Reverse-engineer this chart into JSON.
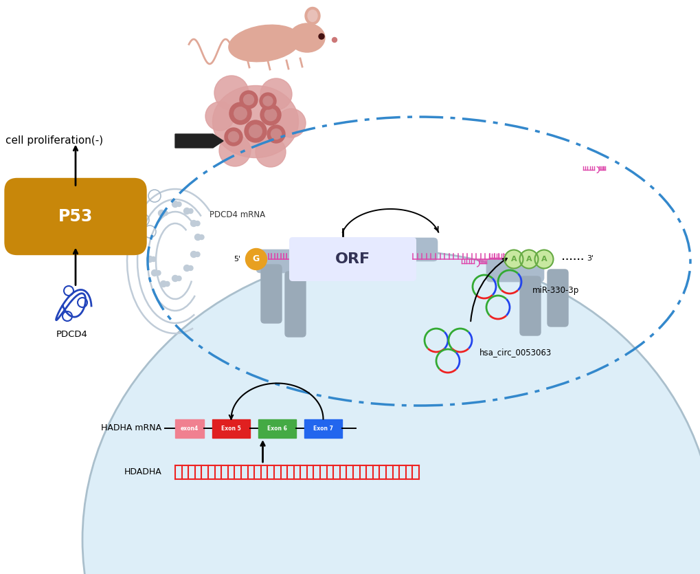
{
  "bg_color": "#ffffff",
  "cell_bg_color": "#ddeef8",
  "nucleus_border_color": "#aabfcc",
  "p53_color": "#c8870a",
  "p53_text": "P53",
  "cell_prolif_text": "cell proliferation(-)",
  "pdcd4_text": "PDCD4",
  "pdcd4_mrna_text": "PDCD4 mRNA",
  "orf_text": "ORF",
  "mir_text": "miR-330-3p",
  "hsa_text": "hsa_circ_0053063",
  "hadha_text": "HADHA mRNA",
  "hdadha_text": "HDADHA",
  "exon_colors": [
    "#f08090",
    "#e02020",
    "#44aa44",
    "#2266ee"
  ],
  "exon_labels": [
    "exon4",
    "Exon 5",
    "Exon 6",
    "Exon 7"
  ],
  "blue_dash_color": "#3388cc",
  "mrna_color": "#dd44aa",
  "g_cap_color": "#e8a020",
  "a_bubble_fill": "#c8e8a0",
  "a_bubble_border": "#66aa44",
  "pore_color": "#aabbcc",
  "ribosome_color": "#b8c8d8"
}
